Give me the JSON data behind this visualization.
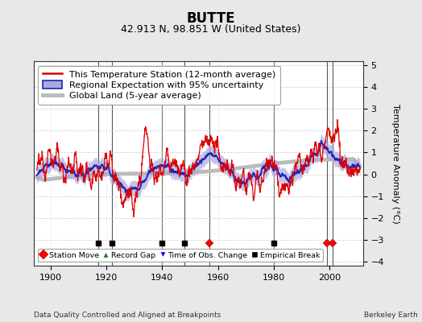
{
  "title": "BUTTE",
  "subtitle": "42.913 N, 98.851 W (United States)",
  "xlabel_note": "Data Quality Controlled and Aligned at Breakpoints",
  "xlabel_right": "Berkeley Earth",
  "ylabel": "Temperature Anomaly (°C)",
  "year_start": 1895,
  "year_end": 2011,
  "ylim": [
    -4.2,
    5.2
  ],
  "yticks": [
    -4,
    -3,
    -2,
    -1,
    0,
    1,
    2,
    3,
    4,
    5
  ],
  "xticks": [
    1900,
    1920,
    1940,
    1960,
    1980,
    2000
  ],
  "bg_color": "#e8e8e8",
  "plot_bg_color": "#ffffff",
  "station_color": "#dd0000",
  "regional_color": "#2222bb",
  "regional_fill_color": "#aaaadd",
  "global_color": "#bbbbbb",
  "break_line_color": "#444444",
  "marker_events": {
    "station_moves": [
      1957,
      1999,
      2001
    ],
    "record_gaps": [],
    "time_obs_changes": [],
    "empirical_breaks": [
      1917,
      1922,
      1940,
      1948,
      1980
    ]
  },
  "title_fontsize": 12,
  "subtitle_fontsize": 9,
  "axis_fontsize": 8,
  "legend_fontsize": 8
}
